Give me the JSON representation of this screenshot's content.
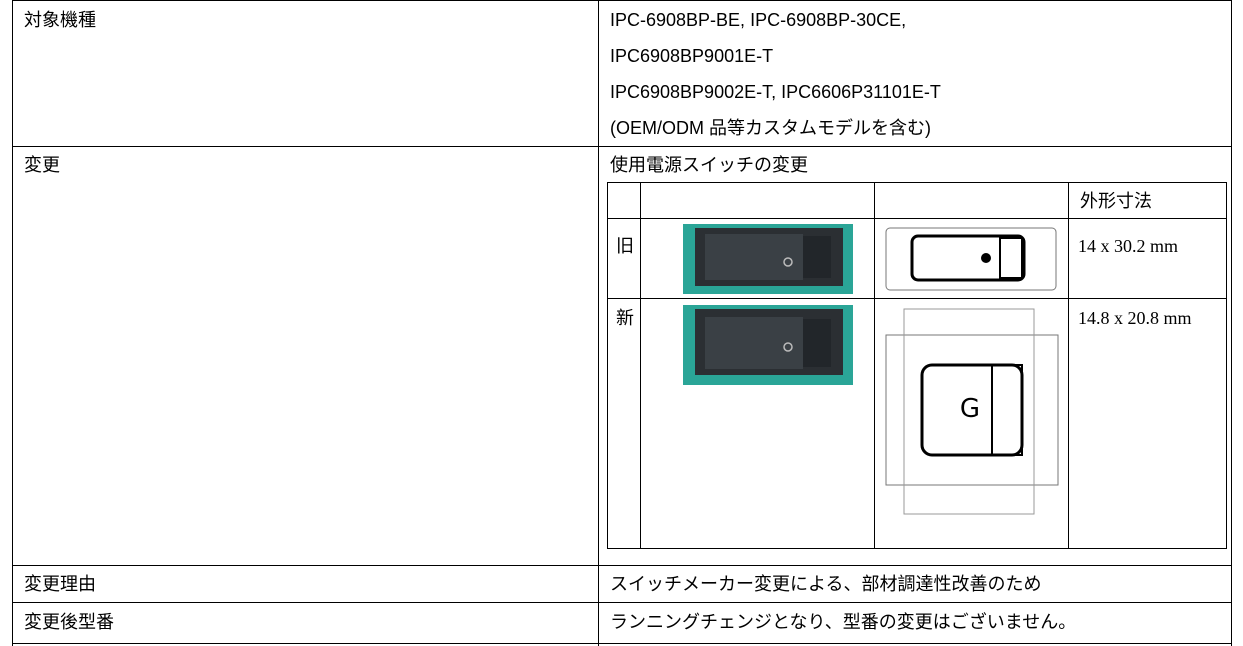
{
  "table": {
    "rows": [
      {
        "label": "対象機種",
        "lines": [
          "IPC-6908BP-BE, IPC-6908BP-30CE,",
          "IPC6908BP9001E-T",
          "IPC6908BP9002E-T, IPC6606P31101E-T",
          "(OEM/ODM 品等カスタムモデルを含む)"
        ]
      },
      {
        "label": "変更",
        "text": "使用電源スイッチの変更",
        "spec_table": {
          "header": "外形寸法",
          "rows": [
            {
              "label": "旧",
              "size": "14 x 30.2 mm"
            },
            {
              "label": "新",
              "size": "14.8 x 20.8 mm"
            }
          ]
        }
      },
      {
        "label": "変更理由",
        "text": "スイッチメーカー変更による、部材調達性改善のため"
      },
      {
        "label": "変更後型番",
        "text": "ランニングチェンジとなり、型番の変更はございません。"
      }
    ]
  }
}
